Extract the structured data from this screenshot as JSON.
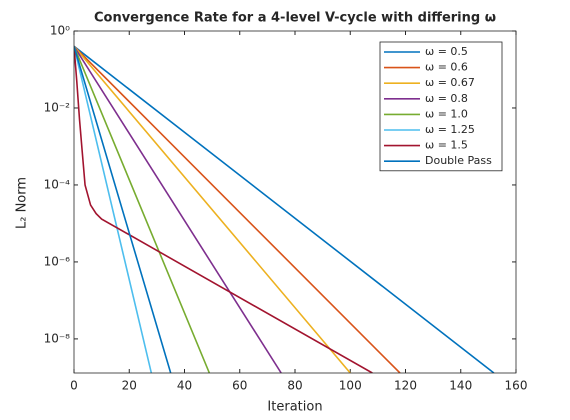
{
  "chart_data": {
    "type": "line",
    "title": "Convergence Rate for a 4-level V-cycle with differing ω",
    "x_label": "Iteration",
    "y_label": "L₂ Norm",
    "xlim": [
      0,
      160
    ],
    "xticks": [
      0,
      20,
      40,
      60,
      80,
      100,
      120,
      140,
      160
    ],
    "ylim": [
      1.3e-09,
      1
    ],
    "log_y": true,
    "yticks": [
      {
        "value": 1e-08,
        "label": "10⁻⁸"
      },
      {
        "value": 1e-06,
        "label": "10⁻⁶"
      },
      {
        "value": 0.0001,
        "label": "10⁻⁴"
      },
      {
        "value": 0.01,
        "label": "10⁻²"
      },
      {
        "value": 1,
        "label": "10⁰"
      }
    ],
    "legend": "upper right",
    "grid": false,
    "series": [
      {
        "name": "ω = 0.5",
        "color": "#0072BD",
        "x": [
          0,
          152
        ],
        "values": [
          0.4,
          1.3e-09
        ]
      },
      {
        "name": "ω = 0.6",
        "color": "#D95319",
        "x": [
          0,
          118
        ],
        "values": [
          0.4,
          1.3e-09
        ]
      },
      {
        "name": "ω = 0.67",
        "color": "#EDB120",
        "x": [
          0,
          100
        ],
        "values": [
          0.4,
          1.3e-09
        ]
      },
      {
        "name": "ω = 0.8",
        "color": "#7E2F8E",
        "x": [
          0,
          75
        ],
        "values": [
          0.4,
          1.3e-09
        ]
      },
      {
        "name": "ω = 1.0",
        "color": "#77AC30",
        "x": [
          0,
          49
        ],
        "values": [
          0.4,
          1.3e-09
        ]
      },
      {
        "name": "ω = 1.25",
        "color": "#4DBEEE",
        "x": [
          0,
          28
        ],
        "values": [
          0.4,
          1.3e-09
        ]
      },
      {
        "name": "ω = 1.5",
        "color": "#A2142F",
        "x": [
          0,
          1,
          2,
          3,
          4,
          6,
          8,
          10,
          108
        ],
        "values": [
          0.4,
          0.05,
          0.005,
          0.0007,
          0.0001,
          3e-05,
          1.8e-05,
          1.3e-05,
          1.3e-09
        ]
      },
      {
        "name": "Double Pass",
        "color": "#0072BD",
        "x": [
          0,
          35
        ],
        "values": [
          0.4,
          1.3e-09
        ]
      }
    ]
  }
}
